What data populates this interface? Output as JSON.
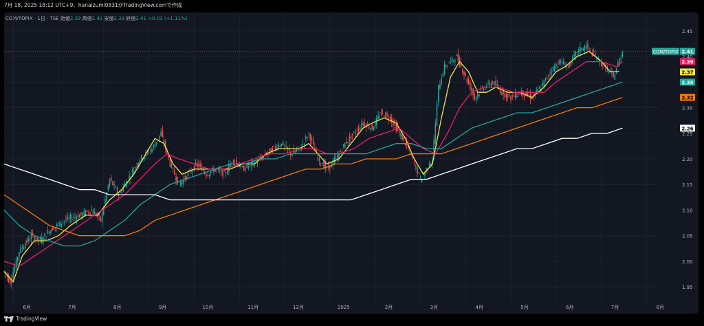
{
  "header": {
    "caption": "7月 18, 2025 18:12 UTC+9、hanaizumi0831がTradingView.comで作成"
  },
  "legend": {
    "symbol": "COM/TOPIX · 1日 · TSE",
    "open_label": "始値",
    "open": "2.39",
    "high_label": "高値",
    "high": "2.41",
    "low_label": "安値",
    "low": "2.39",
    "close_label": "終値",
    "close": "2.41",
    "change": "+0.03 (+1.11%)"
  },
  "footer": {
    "brand": "TradingView"
  },
  "colors": {
    "background": "#131722",
    "up": "#26a69a",
    "down": "#ef5350",
    "ma_yellow": "#f5e44c",
    "ma_pink": "#e91e63",
    "ma_teal": "#26a69a",
    "ma_orange": "#f57c00",
    "ma_white": "#ffffff"
  },
  "chart_data": {
    "type": "line",
    "title": "",
    "xlabel": "",
    "ylabel": "",
    "ylim": [
      1.93,
      2.47
    ],
    "y_ticks": [
      "1.95",
      "2.00",
      "2.05",
      "2.10",
      "2.15",
      "2.20",
      "2.25",
      "2.30",
      "2.35",
      "2.40",
      "2.45"
    ],
    "x_ticks": [
      {
        "label": "6月",
        "x": 6
      },
      {
        "label": "7月",
        "x": 36
      },
      {
        "label": "8月",
        "x": 66
      },
      {
        "label": "9月",
        "x": 96
      },
      {
        "label": "10月",
        "x": 126
      },
      {
        "label": "11月",
        "x": 156
      },
      {
        "label": "12月",
        "x": 186
      },
      {
        "label": "2025",
        "x": 216
      },
      {
        "label": "2月",
        "x": 246
      },
      {
        "label": "3月",
        "x": 276
      },
      {
        "label": "4月",
        "x": 306
      },
      {
        "label": "5月",
        "x": 336
      },
      {
        "label": "6月",
        "x": 366
      },
      {
        "label": "7月",
        "x": 396
      },
      {
        "label": "8月",
        "x": 426
      }
    ],
    "x_range": [
      0,
      434
    ],
    "price_keyframes": [
      [
        0,
        1.98
      ],
      [
        4,
        1.96
      ],
      [
        10,
        2.02
      ],
      [
        18,
        2.05
      ],
      [
        24,
        2.04
      ],
      [
        30,
        2.06
      ],
      [
        40,
        2.08
      ],
      [
        50,
        2.09
      ],
      [
        58,
        2.1
      ],
      [
        64,
        2.08
      ],
      [
        70,
        2.16
      ],
      [
        76,
        2.13
      ],
      [
        82,
        2.16
      ],
      [
        90,
        2.2
      ],
      [
        98,
        2.22
      ],
      [
        104,
        2.25
      ],
      [
        110,
        2.19
      ],
      [
        116,
        2.15
      ],
      [
        122,
        2.17
      ],
      [
        128,
        2.19
      ],
      [
        134,
        2.17
      ],
      [
        140,
        2.18
      ],
      [
        146,
        2.17
      ],
      [
        152,
        2.2
      ],
      [
        158,
        2.18
      ],
      [
        164,
        2.19
      ],
      [
        170,
        2.2
      ],
      [
        178,
        2.22
      ],
      [
        184,
        2.23
      ],
      [
        190,
        2.21
      ],
      [
        196,
        2.22
      ],
      [
        202,
        2.25
      ],
      [
        208,
        2.2
      ],
      [
        214,
        2.18
      ],
      [
        220,
        2.2
      ],
      [
        226,
        2.23
      ],
      [
        232,
        2.25
      ],
      [
        238,
        2.27
      ],
      [
        244,
        2.26
      ],
      [
        250,
        2.29
      ],
      [
        256,
        2.28
      ],
      [
        262,
        2.25
      ],
      [
        268,
        2.22
      ],
      [
        272,
        2.19
      ],
      [
        276,
        2.16
      ],
      [
        280,
        2.18
      ],
      [
        284,
        2.2
      ],
      [
        288,
        2.34
      ],
      [
        292,
        2.38
      ],
      [
        300,
        2.4
      ],
      [
        306,
        2.36
      ],
      [
        312,
        2.32
      ],
      [
        318,
        2.34
      ],
      [
        324,
        2.35
      ],
      [
        330,
        2.33
      ],
      [
        336,
        2.32
      ],
      [
        342,
        2.33
      ],
      [
        350,
        2.32
      ],
      [
        356,
        2.34
      ],
      [
        362,
        2.37
      ],
      [
        368,
        2.39
      ],
      [
        374,
        2.38
      ],
      [
        380,
        2.41
      ],
      [
        386,
        2.42
      ],
      [
        392,
        2.4
      ],
      [
        398,
        2.38
      ],
      [
        404,
        2.36
      ],
      [
        410,
        2.41
      ]
    ],
    "series": [
      {
        "name": "",
        "color": "#f5e44c",
        "points": [
          [
            0,
            1.98
          ],
          [
            6,
            1.96
          ],
          [
            12,
            2.01
          ],
          [
            20,
            2.04
          ],
          [
            28,
            2.04
          ],
          [
            36,
            2.05
          ],
          [
            44,
            2.07
          ],
          [
            54,
            2.09
          ],
          [
            62,
            2.09
          ],
          [
            70,
            2.12
          ],
          [
            78,
            2.14
          ],
          [
            86,
            2.17
          ],
          [
            94,
            2.21
          ],
          [
            100,
            2.24
          ],
          [
            106,
            2.23
          ],
          [
            112,
            2.19
          ],
          [
            118,
            2.17
          ],
          [
            126,
            2.18
          ],
          [
            134,
            2.18
          ],
          [
            142,
            2.18
          ],
          [
            150,
            2.18
          ],
          [
            158,
            2.19
          ],
          [
            166,
            2.19
          ],
          [
            174,
            2.21
          ],
          [
            182,
            2.22
          ],
          [
            190,
            2.22
          ],
          [
            196,
            2.22
          ],
          [
            202,
            2.23
          ],
          [
            208,
            2.21
          ],
          [
            214,
            2.19
          ],
          [
            222,
            2.2
          ],
          [
            230,
            2.23
          ],
          [
            238,
            2.26
          ],
          [
            244,
            2.27
          ],
          [
            252,
            2.28
          ],
          [
            260,
            2.27
          ],
          [
            266,
            2.24
          ],
          [
            272,
            2.2
          ],
          [
            278,
            2.17
          ],
          [
            284,
            2.19
          ],
          [
            290,
            2.28
          ],
          [
            296,
            2.36
          ],
          [
            302,
            2.39
          ],
          [
            308,
            2.37
          ],
          [
            314,
            2.33
          ],
          [
            320,
            2.33
          ],
          [
            326,
            2.34
          ],
          [
            334,
            2.33
          ],
          [
            342,
            2.33
          ],
          [
            350,
            2.32
          ],
          [
            358,
            2.34
          ],
          [
            366,
            2.37
          ],
          [
            372,
            2.38
          ],
          [
            380,
            2.4
          ],
          [
            388,
            2.41
          ],
          [
            396,
            2.39
          ],
          [
            402,
            2.37
          ],
          [
            408,
            2.37
          ]
        ]
      },
      {
        "name": "",
        "color": "#e91e63",
        "points": [
          [
            0,
            2.0
          ],
          [
            10,
            1.99
          ],
          [
            20,
            2.01
          ],
          [
            30,
            2.03
          ],
          [
            40,
            2.05
          ],
          [
            50,
            2.07
          ],
          [
            60,
            2.09
          ],
          [
            70,
            2.11
          ],
          [
            80,
            2.13
          ],
          [
            90,
            2.16
          ],
          [
            100,
            2.19
          ],
          [
            108,
            2.21
          ],
          [
            116,
            2.2
          ],
          [
            126,
            2.19
          ],
          [
            136,
            2.18
          ],
          [
            146,
            2.18
          ],
          [
            156,
            2.19
          ],
          [
            166,
            2.2
          ],
          [
            176,
            2.21
          ],
          [
            186,
            2.21
          ],
          [
            196,
            2.22
          ],
          [
            206,
            2.22
          ],
          [
            214,
            2.21
          ],
          [
            222,
            2.21
          ],
          [
            232,
            2.22
          ],
          [
            242,
            2.24
          ],
          [
            252,
            2.25
          ],
          [
            262,
            2.26
          ],
          [
            270,
            2.24
          ],
          [
            278,
            2.22
          ],
          [
            286,
            2.21
          ],
          [
            294,
            2.25
          ],
          [
            302,
            2.3
          ],
          [
            310,
            2.33
          ],
          [
            318,
            2.34
          ],
          [
            328,
            2.34
          ],
          [
            338,
            2.33
          ],
          [
            348,
            2.33
          ],
          [
            358,
            2.33
          ],
          [
            366,
            2.35
          ],
          [
            376,
            2.37
          ],
          [
            386,
            2.39
          ],
          [
            396,
            2.39
          ],
          [
            406,
            2.38
          ],
          [
            410,
            2.39
          ]
        ]
      },
      {
        "name": "",
        "color": "#26a69a",
        "points": [
          [
            0,
            2.1
          ],
          [
            10,
            2.07
          ],
          [
            20,
            2.05
          ],
          [
            30,
            2.04
          ],
          [
            40,
            2.03
          ],
          [
            50,
            2.03
          ],
          [
            60,
            2.04
          ],
          [
            70,
            2.06
          ],
          [
            80,
            2.08
          ],
          [
            90,
            2.11
          ],
          [
            100,
            2.13
          ],
          [
            110,
            2.15
          ],
          [
            120,
            2.16
          ],
          [
            130,
            2.17
          ],
          [
            140,
            2.18
          ],
          [
            150,
            2.19
          ],
          [
            160,
            2.19
          ],
          [
            170,
            2.2
          ],
          [
            180,
            2.2
          ],
          [
            190,
            2.21
          ],
          [
            200,
            2.21
          ],
          [
            210,
            2.21
          ],
          [
            220,
            2.21
          ],
          [
            230,
            2.21
          ],
          [
            240,
            2.21
          ],
          [
            250,
            2.22
          ],
          [
            260,
            2.23
          ],
          [
            270,
            2.23
          ],
          [
            280,
            2.22
          ],
          [
            290,
            2.22
          ],
          [
            300,
            2.24
          ],
          [
            310,
            2.26
          ],
          [
            320,
            2.27
          ],
          [
            330,
            2.28
          ],
          [
            340,
            2.29
          ],
          [
            350,
            2.29
          ],
          [
            360,
            2.3
          ],
          [
            370,
            2.31
          ],
          [
            380,
            2.32
          ],
          [
            390,
            2.33
          ],
          [
            400,
            2.34
          ],
          [
            410,
            2.35
          ]
        ]
      },
      {
        "name": "",
        "color": "#f57c00",
        "points": [
          [
            0,
            2.13
          ],
          [
            10,
            2.11
          ],
          [
            20,
            2.09
          ],
          [
            30,
            2.07
          ],
          [
            40,
            2.06
          ],
          [
            50,
            2.05
          ],
          [
            60,
            2.05
          ],
          [
            70,
            2.05
          ],
          [
            80,
            2.05
          ],
          [
            90,
            2.06
          ],
          [
            100,
            2.08
          ],
          [
            110,
            2.09
          ],
          [
            120,
            2.1
          ],
          [
            130,
            2.11
          ],
          [
            140,
            2.12
          ],
          [
            150,
            2.13
          ],
          [
            160,
            2.14
          ],
          [
            170,
            2.15
          ],
          [
            180,
            2.16
          ],
          [
            190,
            2.17
          ],
          [
            200,
            2.18
          ],
          [
            210,
            2.18
          ],
          [
            220,
            2.19
          ],
          [
            230,
            2.19
          ],
          [
            240,
            2.2
          ],
          [
            250,
            2.2
          ],
          [
            260,
            2.2
          ],
          [
            270,
            2.21
          ],
          [
            280,
            2.21
          ],
          [
            290,
            2.21
          ],
          [
            300,
            2.22
          ],
          [
            310,
            2.23
          ],
          [
            320,
            2.24
          ],
          [
            330,
            2.25
          ],
          [
            340,
            2.26
          ],
          [
            350,
            2.27
          ],
          [
            360,
            2.28
          ],
          [
            370,
            2.29
          ],
          [
            380,
            2.3
          ],
          [
            390,
            2.3
          ],
          [
            400,
            2.31
          ],
          [
            410,
            2.32
          ]
        ]
      },
      {
        "name": "",
        "color": "#ffffff",
        "points": [
          [
            0,
            2.19
          ],
          [
            10,
            2.18
          ],
          [
            20,
            2.17
          ],
          [
            30,
            2.16
          ],
          [
            40,
            2.15
          ],
          [
            50,
            2.14
          ],
          [
            60,
            2.14
          ],
          [
            70,
            2.13
          ],
          [
            80,
            2.13
          ],
          [
            90,
            2.13
          ],
          [
            100,
            2.13
          ],
          [
            110,
            2.12
          ],
          [
            120,
            2.12
          ],
          [
            130,
            2.12
          ],
          [
            140,
            2.12
          ],
          [
            150,
            2.12
          ],
          [
            160,
            2.12
          ],
          [
            170,
            2.12
          ],
          [
            180,
            2.12
          ],
          [
            190,
            2.12
          ],
          [
            200,
            2.12
          ],
          [
            210,
            2.12
          ],
          [
            220,
            2.12
          ],
          [
            230,
            2.12
          ],
          [
            240,
            2.13
          ],
          [
            250,
            2.14
          ],
          [
            260,
            2.15
          ],
          [
            270,
            2.16
          ],
          [
            280,
            2.16
          ],
          [
            290,
            2.17
          ],
          [
            300,
            2.18
          ],
          [
            310,
            2.19
          ],
          [
            320,
            2.2
          ],
          [
            330,
            2.21
          ],
          [
            340,
            2.22
          ],
          [
            350,
            2.22
          ],
          [
            360,
            2.23
          ],
          [
            370,
            2.24
          ],
          [
            380,
            2.24
          ],
          [
            390,
            2.25
          ],
          [
            400,
            2.25
          ],
          [
            410,
            2.26
          ]
        ]
      }
    ],
    "price_labels": [
      {
        "text": "COM/TOPIX",
        "value": "2.41",
        "y": 2.41,
        "bg": "#26a69a",
        "fg": "#ffffff"
      },
      {
        "text": "",
        "value": "2.39",
        "y": 2.39,
        "bg": "#e91e63",
        "fg": "#ffffff"
      },
      {
        "text": "",
        "value": "2.37",
        "y": 2.37,
        "bg": "#f5e44c",
        "fg": "#000000"
      },
      {
        "text": "",
        "value": "2.35",
        "y": 2.35,
        "bg": "#26a69a",
        "fg": "#ffffff"
      },
      {
        "text": "",
        "value": "2.32",
        "y": 2.32,
        "bg": "#f57c00",
        "fg": "#000000"
      },
      {
        "text": "",
        "value": "2.26",
        "y": 2.26,
        "bg": "#ffffff",
        "fg": "#000000"
      }
    ],
    "grid": true,
    "legend_position": "top-left"
  }
}
